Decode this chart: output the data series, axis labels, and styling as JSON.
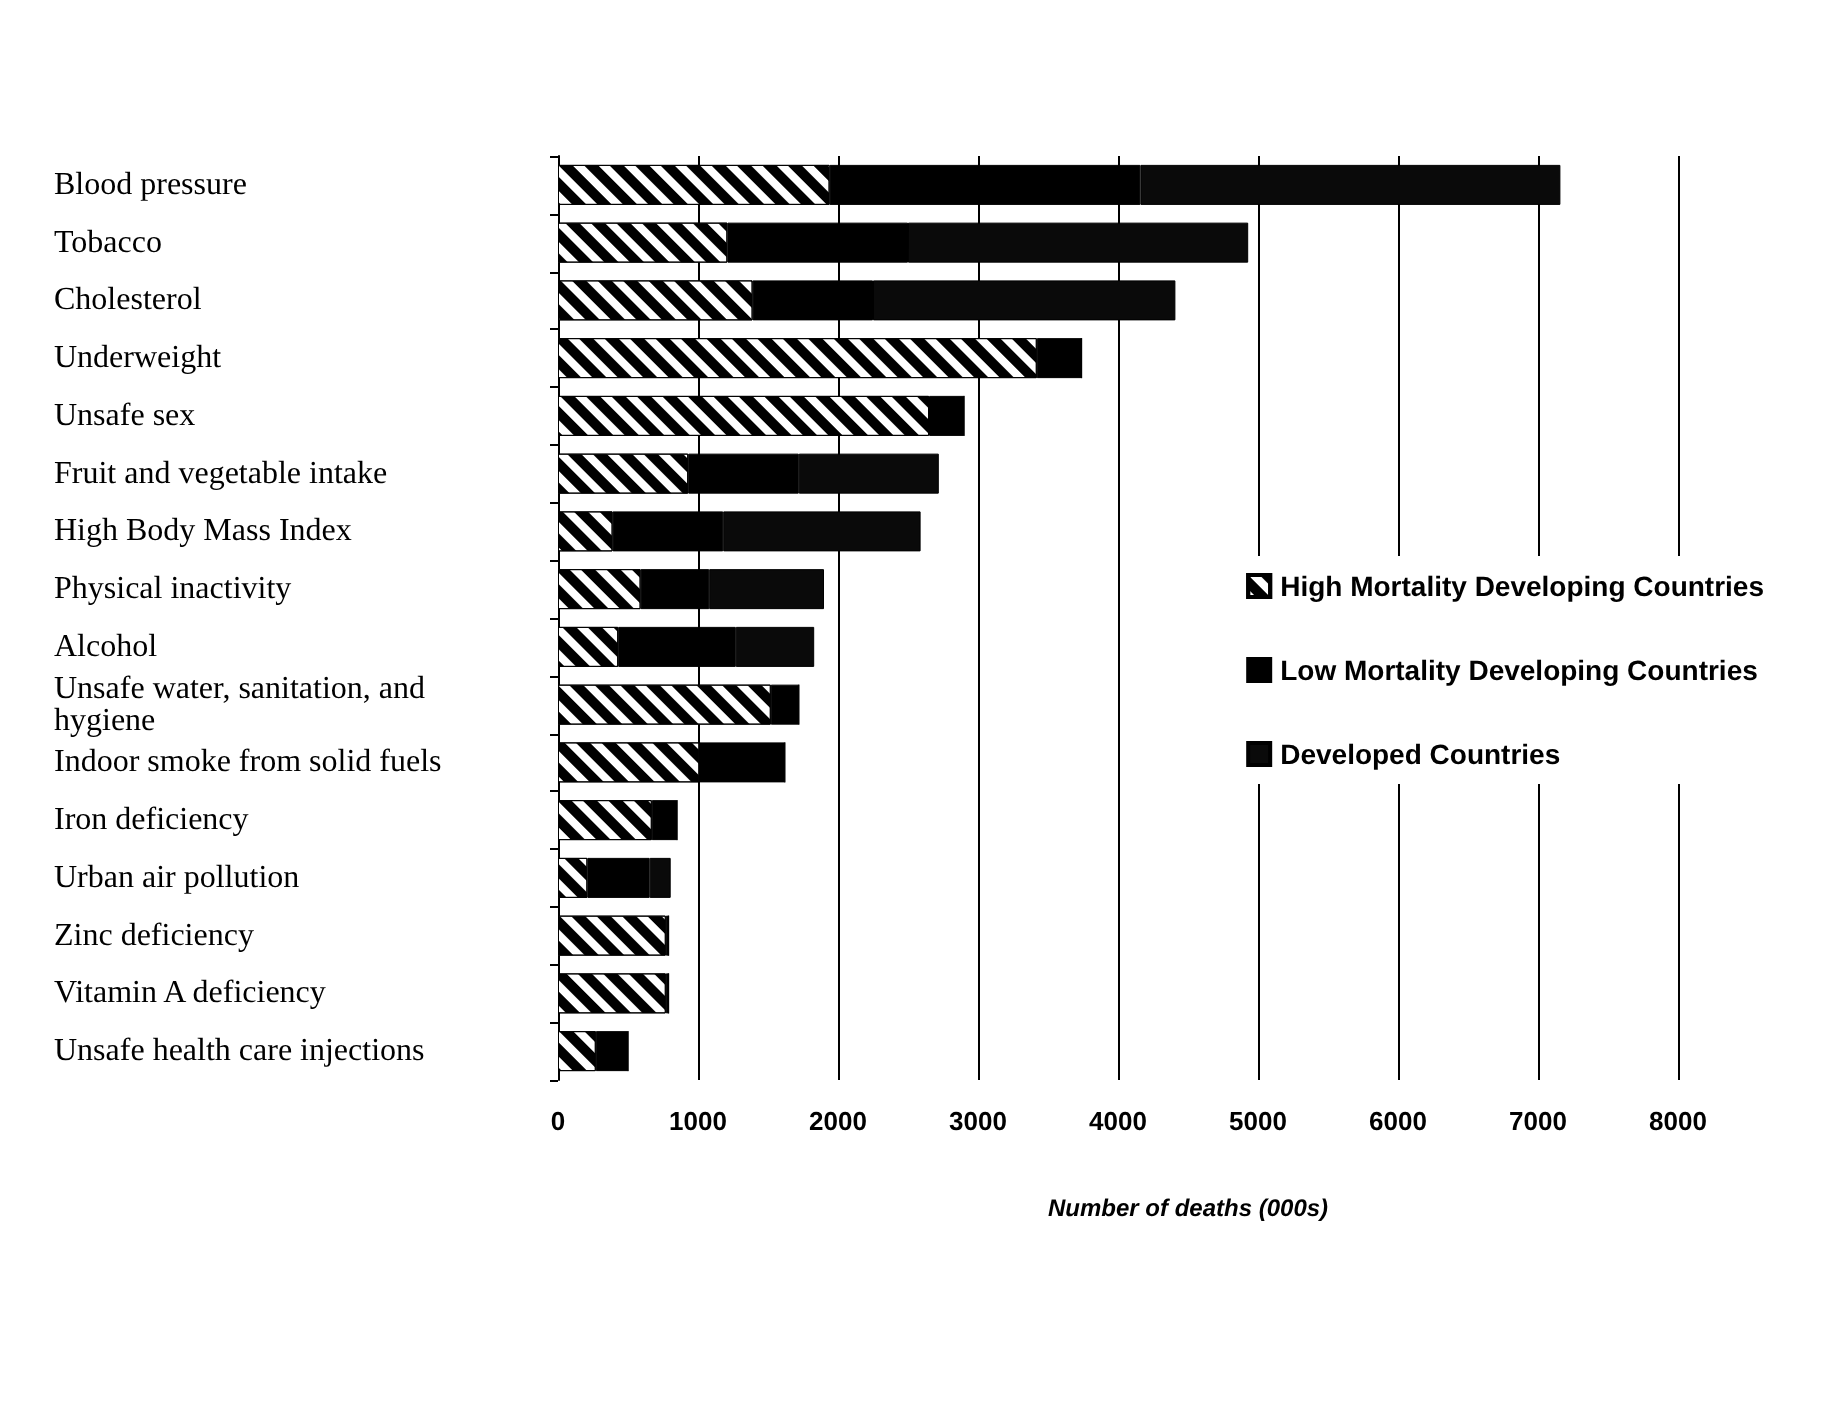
{
  "chart_data": {
    "type": "bar",
    "orientation": "horizontal",
    "stacked": true,
    "categories": [
      "Blood pressure",
      "Tobacco",
      "Cholesterol",
      "Underweight",
      "Unsafe sex",
      "Fruit and vegetable intake",
      "High Body Mass Index",
      "Physical inactivity",
      "Alcohol",
      "Unsafe water, sanitation, and hygiene",
      "Indoor smoke from solid fuels",
      "Iron deficiency",
      "Urban air pollution",
      "Zinc deficiency",
      "Vitamin A deficiency",
      "Unsafe health care injections"
    ],
    "series": [
      {
        "name": "High Mortality Developing Countries",
        "color": "#ffffff",
        "values": [
          1940,
          1210,
          1390,
          3420,
          2650,
          930,
          390,
          590,
          430,
          1520,
          1010,
          670,
          210,
          770,
          770,
          270
        ]
      },
      {
        "name": "Low Mortality Developing Countries",
        "color": "#000000",
        "values": [
          2220,
          1290,
          860,
          320,
          250,
          790,
          790,
          490,
          840,
          200,
          610,
          180,
          445,
          20,
          20,
          230
        ]
      },
      {
        "name": "Developed Countries",
        "color": "#0a0a0a",
        "values": [
          3000,
          2430,
          2160,
          0,
          0,
          1000,
          1410,
          820,
          560,
          0,
          0,
          0,
          150,
          0,
          0,
          0
        ]
      }
    ],
    "xlabel": "Number of deaths (000s)",
    "xlim": [
      0,
      8000
    ],
    "xticks": [
      0,
      1000,
      2000,
      3000,
      4000,
      5000,
      6000,
      7000,
      8000
    ],
    "grid": "x",
    "legend": "right"
  }
}
